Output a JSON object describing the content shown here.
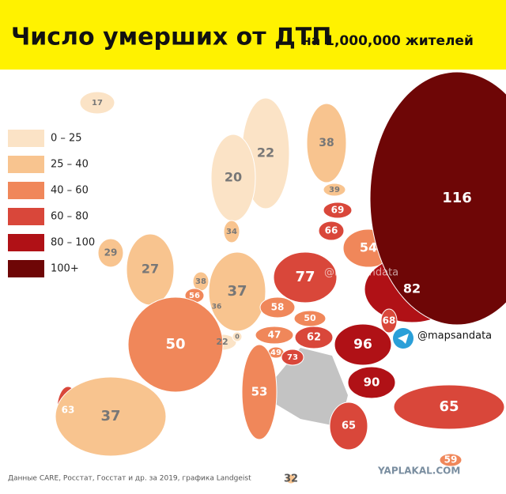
{
  "header": {
    "title": "Число умерших от ДТП",
    "subtitle": "на 1,000,000 жителей"
  },
  "legend": [
    {
      "label": "0 – 25",
      "color": "#fbe3c6"
    },
    {
      "label": "25 – 40",
      "color": "#f8c48f"
    },
    {
      "label": "40 – 60",
      "color": "#f0875a"
    },
    {
      "label": "60 – 80",
      "color": "#d9473a"
    },
    {
      "label": "80 – 100",
      "color": "#b01116"
    },
    {
      "label": "100+",
      "color": "#6e0606"
    }
  ],
  "regions": [
    {
      "value": 17,
      "class": 0
    },
    {
      "value": 22,
      "class": 0
    },
    {
      "value": 38,
      "class": 1
    },
    {
      "value": 20,
      "class": 0
    },
    {
      "value": 39,
      "class": 1
    },
    {
      "value": 69,
      "class": 3
    },
    {
      "value": 66,
      "class": 3
    },
    {
      "value": 34,
      "class": 1
    },
    {
      "value": 29,
      "class": 1
    },
    {
      "value": 27,
      "class": 1
    },
    {
      "value": 54,
      "class": 2
    },
    {
      "value": 77,
      "class": 3
    },
    {
      "value": 82,
      "class": 4
    },
    {
      "value": 116,
      "class": 5
    },
    {
      "value": 38,
      "class": 1
    },
    {
      "value": 56,
      "class": 2
    },
    {
      "value": 36,
      "class": 1
    },
    {
      "value": 37,
      "class": 1
    },
    {
      "value": 58,
      "class": 2
    },
    {
      "value": 50,
      "class": 2
    },
    {
      "value": 47,
      "class": 2
    },
    {
      "value": 22,
      "class": 0
    },
    {
      "value": 0,
      "class": 0
    },
    {
      "value": 62,
      "class": 3
    },
    {
      "value": 68,
      "class": 3
    },
    {
      "value": 96,
      "class": 4
    },
    {
      "value": 50,
      "class": 2
    },
    {
      "value": 49,
      "class": 2
    },
    {
      "value": 73,
      "class": 3
    },
    {
      "value": 90,
      "class": 4
    },
    {
      "value": 53,
      "class": 2
    },
    {
      "value": 63,
      "class": 3
    },
    {
      "value": 37,
      "class": 1
    },
    {
      "value": 65,
      "class": 3
    },
    {
      "value": 65,
      "class": 3
    },
    {
      "value": 59,
      "class": 2
    },
    {
      "value": 32,
      "class": 1
    }
  ],
  "source": "Данные CARE, Росстат, Госстат и др. за 2019, графика Landgeist",
  "watermarks": [
    "@mapsandata",
    "@mapsandata",
    "YAPLAKAL.COM"
  ]
}
